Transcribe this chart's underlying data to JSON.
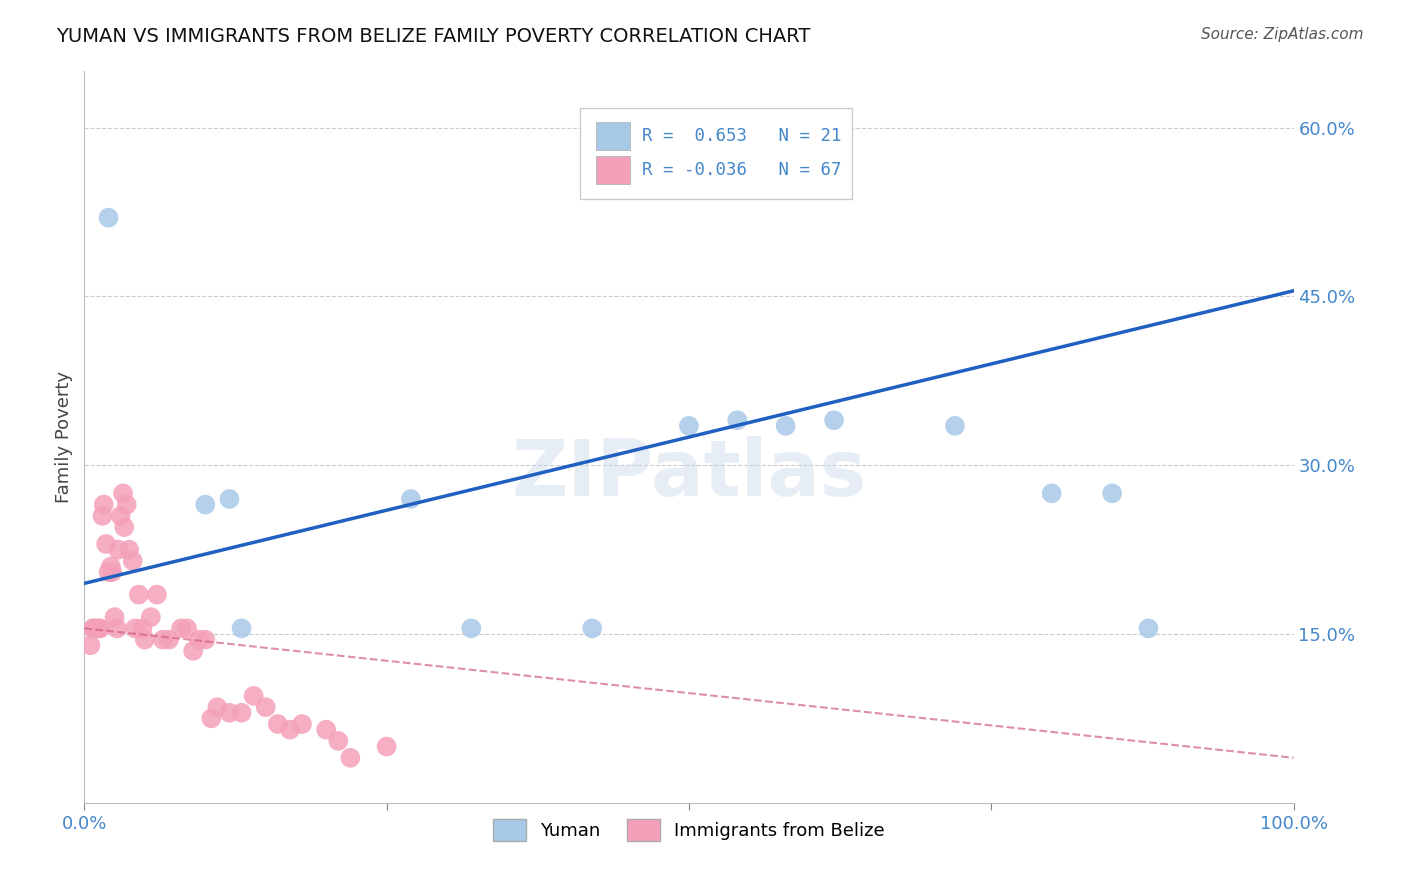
{
  "title": "YUMAN VS IMMIGRANTS FROM BELIZE FAMILY POVERTY CORRELATION CHART",
  "source": "Source: ZipAtlas.com",
  "ylabel": "Family Poverty",
  "xlim": [
    0.0,
    1.0
  ],
  "ylim": [
    0.0,
    0.65
  ],
  "ytick_labels": [
    "15.0%",
    "30.0%",
    "45.0%",
    "60.0%"
  ],
  "ytick_vals": [
    0.15,
    0.3,
    0.45,
    0.6
  ],
  "watermark": "ZIPatlas",
  "blue_color": "#a8c8e8",
  "pink_color": "#f4a0b8",
  "line_blue": "#2060c0",
  "line_pink": "#d06080",
  "background": "#ffffff",
  "blue_points_x": [
    0.02,
    0.1,
    0.12,
    0.13,
    0.27,
    0.32,
    0.42,
    0.5,
    0.54,
    0.58,
    0.62,
    0.72,
    0.8,
    0.85,
    0.88
  ],
  "blue_points_y": [
    0.52,
    0.265,
    0.27,
    0.155,
    0.27,
    0.155,
    0.155,
    0.335,
    0.34,
    0.335,
    0.34,
    0.335,
    0.275,
    0.275,
    0.155
  ],
  "blue_line_x0": 0.0,
  "blue_line_y0": 0.195,
  "blue_line_x1": 1.0,
  "blue_line_y1": 0.455,
  "pink_line_x0": 0.0,
  "pink_line_y0": 0.155,
  "pink_line_x1": 1.0,
  "pink_line_y1": 0.04,
  "pink_points_x": [
    0.005,
    0.007,
    0.008,
    0.01,
    0.012,
    0.013,
    0.015,
    0.016,
    0.018,
    0.02,
    0.022,
    0.023,
    0.025,
    0.027,
    0.028,
    0.03,
    0.032,
    0.033,
    0.035,
    0.037,
    0.04,
    0.042,
    0.045,
    0.048,
    0.05,
    0.055,
    0.06,
    0.065,
    0.07,
    0.08,
    0.085,
    0.09,
    0.095,
    0.1,
    0.105,
    0.11,
    0.12,
    0.13,
    0.14,
    0.15,
    0.16,
    0.17,
    0.18,
    0.2,
    0.21,
    0.22,
    0.25
  ],
  "pink_points_y": [
    0.14,
    0.155,
    0.155,
    0.155,
    0.155,
    0.155,
    0.255,
    0.265,
    0.23,
    0.205,
    0.21,
    0.205,
    0.165,
    0.155,
    0.225,
    0.255,
    0.275,
    0.245,
    0.265,
    0.225,
    0.215,
    0.155,
    0.185,
    0.155,
    0.145,
    0.165,
    0.185,
    0.145,
    0.145,
    0.155,
    0.155,
    0.135,
    0.145,
    0.145,
    0.075,
    0.085,
    0.08,
    0.08,
    0.095,
    0.085,
    0.07,
    0.065,
    0.07,
    0.065,
    0.055,
    0.04,
    0.05
  ]
}
